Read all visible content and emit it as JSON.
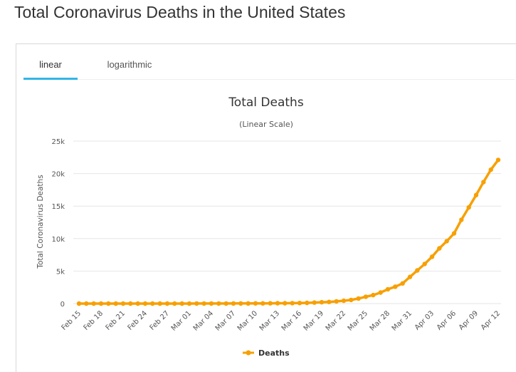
{
  "page": {
    "title": "Total Coronavirus Deaths in the United States"
  },
  "tabs": [
    {
      "label": "linear",
      "active": true
    },
    {
      "label": "logarithmic",
      "active": false
    }
  ],
  "colors": {
    "series": "#f7a000",
    "tab_accent": "#33b5e5",
    "grid": "#e6e6e6"
  },
  "chart_data": {
    "type": "line",
    "title": "Total Deaths",
    "subtitle": "(Linear Scale)",
    "ylabel": "Total Coronavirus Deaths",
    "xlabel": "",
    "ylim": [
      0,
      25000
    ],
    "y_ticks": [
      0,
      5000,
      10000,
      15000,
      20000,
      25000
    ],
    "y_tick_labels": [
      "0",
      "5k",
      "10k",
      "15k",
      "20k",
      "25k"
    ],
    "x_tick_labels": [
      "Feb 15",
      "Feb 18",
      "Feb 21",
      "Feb 24",
      "Feb 27",
      "Mar 01",
      "Mar 04",
      "Mar 07",
      "Mar 10",
      "Mar 13",
      "Mar 16",
      "Mar 19",
      "Mar 22",
      "Mar 25",
      "Mar 28",
      "Mar 31",
      "Apr 03",
      "Apr 06",
      "Apr 09",
      "Apr 12"
    ],
    "grid": true,
    "legend_position": "bottom-center",
    "x": [
      "Feb 15",
      "Feb 16",
      "Feb 17",
      "Feb 18",
      "Feb 19",
      "Feb 20",
      "Feb 21",
      "Feb 22",
      "Feb 23",
      "Feb 24",
      "Feb 25",
      "Feb 26",
      "Feb 27",
      "Feb 28",
      "Feb 29",
      "Mar 01",
      "Mar 02",
      "Mar 03",
      "Mar 04",
      "Mar 05",
      "Mar 06",
      "Mar 07",
      "Mar 08",
      "Mar 09",
      "Mar 10",
      "Mar 11",
      "Mar 12",
      "Mar 13",
      "Mar 14",
      "Mar 15",
      "Mar 16",
      "Mar 17",
      "Mar 18",
      "Mar 19",
      "Mar 20",
      "Mar 21",
      "Mar 22",
      "Mar 23",
      "Mar 24",
      "Mar 25",
      "Mar 26",
      "Mar 27",
      "Mar 28",
      "Mar 29",
      "Mar 30",
      "Mar 31",
      "Apr 01",
      "Apr 02",
      "Apr 03",
      "Apr 04",
      "Apr 05",
      "Apr 06",
      "Apr 07",
      "Apr 08",
      "Apr 09",
      "Apr 10",
      "Apr 11",
      "Apr 12"
    ],
    "series": [
      {
        "name": "Deaths",
        "values": [
          0,
          0,
          0,
          0,
          0,
          0,
          0,
          0,
          0,
          0,
          0,
          0,
          0,
          0,
          1,
          1,
          6,
          9,
          11,
          12,
          15,
          19,
          22,
          26,
          31,
          38,
          43,
          50,
          57,
          68,
          86,
          109,
          150,
          206,
          255,
          340,
          440,
          555,
          780,
          1050,
          1300,
          1700,
          2200,
          2600,
          3100,
          4100,
          5100,
          6100,
          7200,
          8500,
          9600,
          10800,
          12900,
          14800,
          16700,
          18700,
          20600,
          22100
        ]
      }
    ]
  }
}
